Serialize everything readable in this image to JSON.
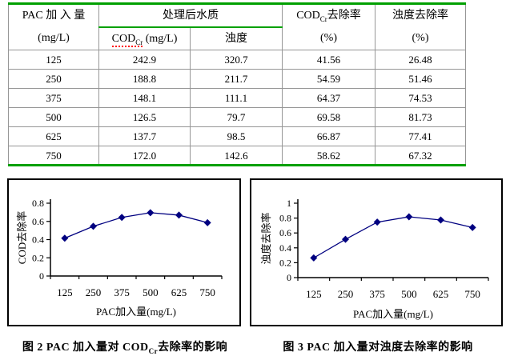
{
  "colors": {
    "table_outer_border": "#00A000",
    "table_inner_border": "#969696",
    "series_line": "#000080",
    "spellcheck_underline": "#FF0000",
    "axis": "#000000"
  },
  "table": {
    "header": {
      "col1_line1": "PAC 加 入 量",
      "col1_line2": "(mg/L)",
      "group_title": "处理后水质",
      "sub_col1": {
        "prefix": "COD",
        "sub": "Cr",
        "suffix": " (mg/L)"
      },
      "sub_col2": "浊度",
      "col4": {
        "prefix": "COD",
        "sub": "Cr",
        "suffix": "去除率"
      },
      "col4_line2": "(%)",
      "col5_line1": "浊度去除率",
      "col5_line2": "(%)"
    },
    "rows": [
      [
        "125",
        "242.9",
        "320.7",
        "41.56",
        "26.48"
      ],
      [
        "250",
        "188.8",
        "211.7",
        "54.59",
        "51.46"
      ],
      [
        "375",
        "148.1",
        "111.1",
        "64.37",
        "74.53"
      ],
      [
        "500",
        "126.5",
        "79.7",
        "69.58",
        "81.73"
      ],
      [
        "625",
        "137.7",
        "98.5",
        "66.87",
        "77.41"
      ],
      [
        "750",
        "172.0",
        "142.6",
        "58.62",
        "67.32"
      ]
    ]
  },
  "chart_data": [
    {
      "type": "line",
      "title": "",
      "categories": [
        "125",
        "250",
        "375",
        "500",
        "625",
        "750"
      ],
      "values": [
        0.4156,
        0.5459,
        0.6437,
        0.6958,
        0.6687,
        0.5862
      ],
      "xlabel": "PAC加入量(mg/L)",
      "ylabel": "COD去除率",
      "ylim": [
        0,
        0.8
      ],
      "yticks": [
        0,
        0.2,
        0.4,
        0.6,
        0.8
      ],
      "ytick_labels": [
        "0",
        "0.2",
        "0.4",
        "0.6",
        "0.8"
      ],
      "marker": "diamond",
      "line_color": "#000080",
      "grid": false,
      "legend": "none"
    },
    {
      "type": "line",
      "title": "",
      "categories": [
        "125",
        "250",
        "375",
        "500",
        "625",
        "750"
      ],
      "values": [
        0.2648,
        0.5146,
        0.7453,
        0.8173,
        0.7741,
        0.6732
      ],
      "xlabel": "PAC加入量(mg/L)",
      "ylabel": "浊度去除率",
      "ylim": [
        0,
        1
      ],
      "yticks": [
        0,
        0.2,
        0.4,
        0.6,
        0.8,
        1
      ],
      "ytick_labels": [
        "0",
        "0.2",
        "0.4",
        "0.6",
        "0.8",
        "1"
      ],
      "marker": "diamond",
      "line_color": "#000080",
      "grid": false,
      "legend": "none"
    }
  ],
  "captions": {
    "fig2": {
      "prefix": "图 2  PAC 加入量对 COD",
      "sub": "Cr",
      "suffix": "去除率的影响"
    },
    "fig3": "图 3  PAC 加入量对浊度去除率的影响"
  }
}
